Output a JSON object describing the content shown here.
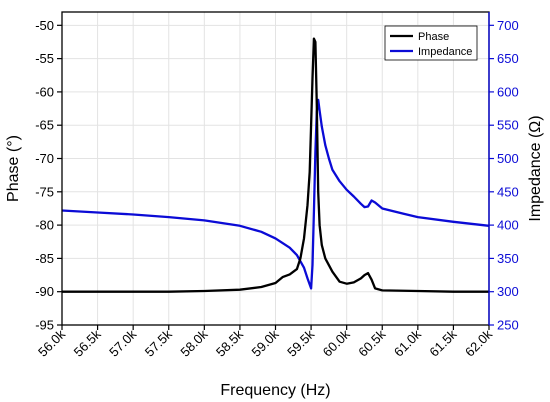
{
  "chart_data": {
    "type": "line",
    "xlabel": "Frequency (Hz)",
    "ylabel_left": "Phase (°)",
    "ylabel_right": "Impedance (Ω)",
    "xlim": [
      56000,
      62000
    ],
    "ylim_left": [
      -95,
      -48
    ],
    "ylim_right": [
      250,
      720
    ],
    "x_ticks": [
      56000,
      56500,
      57000,
      57500,
      58000,
      58500,
      59000,
      59500,
      60000,
      60500,
      61000,
      61500,
      62000
    ],
    "x_tick_labels": [
      "56.0k",
      "56.5k",
      "57.0k",
      "57.5k",
      "58.0k",
      "58.5k",
      "59.0k",
      "59.5k",
      "60.0k",
      "60.5k",
      "61.0k",
      "61.5k",
      "62.0k"
    ],
    "y_left_ticks": [
      -95,
      -90,
      -85,
      -80,
      -75,
      -70,
      -65,
      -60,
      -55,
      -50
    ],
    "y_left_tick_labels": [
      "-95",
      "-90",
      "-85",
      "-80",
      "-75",
      "-70",
      "-65",
      "-60",
      "-55",
      "-50"
    ],
    "y_right_ticks": [
      250,
      300,
      350,
      400,
      450,
      500,
      550,
      600,
      650,
      700
    ],
    "y_right_tick_labels": [
      "250",
      "300",
      "350",
      "400",
      "450",
      "500",
      "550",
      "600",
      "650",
      "700"
    ],
    "grid": true,
    "legend_position": "top-right",
    "colors": {
      "phase": "#000000",
      "impedance": "#0b0bd6",
      "right_axis": "#0b0bd6",
      "grid": "#e3e3e3"
    },
    "series": [
      {
        "name": "Phase",
        "axis": "left",
        "x": [
          56000,
          56500,
          57000,
          57500,
          58000,
          58500,
          58800,
          59000,
          59100,
          59200,
          59300,
          59350,
          59400,
          59450,
          59480,
          59500,
          59520,
          59540,
          59560,
          59580,
          59600,
          59620,
          59650,
          59700,
          59800,
          59900,
          60000,
          60100,
          60200,
          60250,
          60300,
          60350,
          60400,
          60500,
          61000,
          61500,
          62000
        ],
        "values": [
          -90,
          -90,
          -90,
          -90,
          -89.9,
          -89.7,
          -89.3,
          -88.7,
          -87.8,
          -87.4,
          -86.6,
          -85,
          -82,
          -77,
          -72,
          -65,
          -58,
          -52,
          -52.5,
          -62,
          -75,
          -80,
          -83,
          -85,
          -87,
          -88.5,
          -88.8,
          -88.6,
          -88,
          -87.5,
          -87.2,
          -88.2,
          -89.5,
          -89.8,
          -89.9,
          -90,
          -90
        ]
      },
      {
        "name": "Impedance",
        "axis": "right",
        "x": [
          56000,
          56500,
          57000,
          57500,
          58000,
          58500,
          58800,
          59000,
          59200,
          59300,
          59400,
          59450,
          59500,
          59520,
          59540,
          59560,
          59580,
          59600,
          59620,
          59650,
          59700,
          59750,
          59800,
          59900,
          60000,
          60100,
          60200,
          60250,
          60300,
          60350,
          60400,
          60500,
          60800,
          61000,
          61500,
          62000
        ],
        "values": [
          422,
          419,
          416,
          412,
          407,
          399,
          390,
          380,
          366,
          355,
          336,
          320,
          305,
          340,
          420,
          510,
          570,
          588,
          572,
          548,
          520,
          500,
          483,
          466,
          453,
          443,
          432,
          427,
          428,
          437,
          434,
          425,
          417,
          412,
          405,
          399
        ]
      }
    ]
  }
}
